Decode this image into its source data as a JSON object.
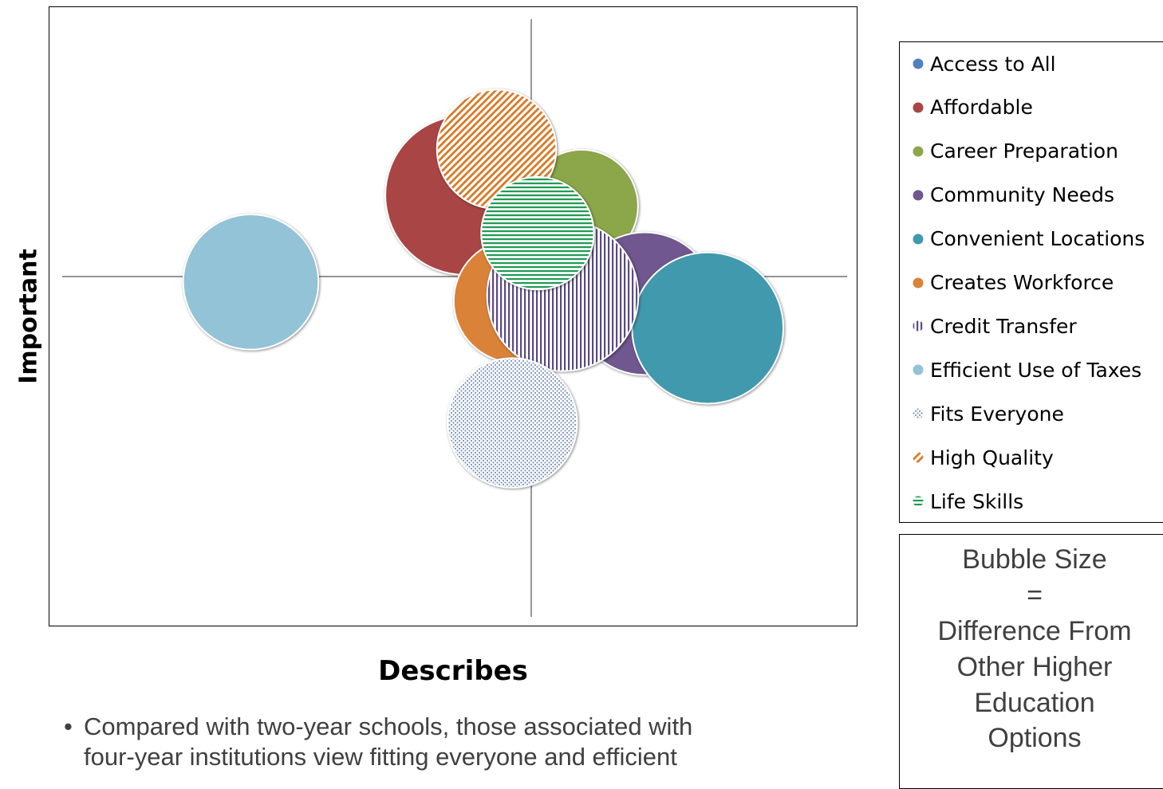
{
  "chart_data": {
    "type": "bubble",
    "title": "",
    "xlabel": "Describes",
    "ylabel": "Important",
    "xlim": [
      -1,
      1
    ],
    "ylim": [
      -1,
      1
    ],
    "axis_lines_at": [
      0,
      0
    ],
    "legend_position": "right",
    "series": [
      {
        "name": "Access to All",
        "color": "#4F81BD",
        "pattern": "solid",
        "points": []
      },
      {
        "name": "Affordable",
        "color": "#A94545",
        "pattern": "solid",
        "points": [
          {
            "x": -0.21,
            "y": 0.3,
            "size": 100
          }
        ]
      },
      {
        "name": "Career Preparation",
        "color": "#8BA74A",
        "pattern": "solid",
        "points": [
          {
            "x": 0.16,
            "y": 0.26,
            "size": 50
          }
        ]
      },
      {
        "name": "Community Needs",
        "color": "#70578F",
        "pattern": "solid",
        "points": [
          {
            "x": 0.36,
            "y": -0.1,
            "size": 80
          }
        ]
      },
      {
        "name": "Convenient Locations",
        "color": "#4199AE",
        "pattern": "solid",
        "points": [
          {
            "x": 0.56,
            "y": -0.19,
            "size": 90
          }
        ]
      },
      {
        "name": "Creates Workforce",
        "color": "#DA8238",
        "pattern": "solid",
        "points": [
          {
            "x": -0.05,
            "y": -0.09,
            "size": 60
          }
        ]
      },
      {
        "name": "Credit Transfer",
        "color": "#5A4A86",
        "pattern": "vertical-lines",
        "points": [
          {
            "x": 0.1,
            "y": -0.07,
            "size": 90
          }
        ]
      },
      {
        "name": "Efficient Use of Taxes",
        "color": "#93C3D6",
        "pattern": "solid",
        "points": [
          {
            "x": -0.89,
            "y": -0.02,
            "size": 72
          }
        ]
      },
      {
        "name": "Fits Everyone",
        "color": "#7E95B3",
        "pattern": "dots",
        "points": [
          {
            "x": -0.06,
            "y": -0.54,
            "size": 66
          }
        ]
      },
      {
        "name": "High Quality",
        "color": "#D77A26",
        "pattern": "diagonal-lines",
        "points": [
          {
            "x": -0.11,
            "y": 0.47,
            "size": 56
          }
        ]
      },
      {
        "name": "Life Skills",
        "color": "#1F9A53",
        "pattern": "horizontal-lines",
        "points": [
          {
            "x": 0.02,
            "y": 0.16,
            "size": 50
          }
        ]
      }
    ]
  },
  "size_note": {
    "lines": [
      "Bubble Size",
      "=",
      "Difference From",
      "Other Higher",
      "Education",
      "Options"
    ]
  },
  "footnote": {
    "bullet": "•",
    "lines": [
      "Compared with two-year schools, those associated with",
      "four-year institutions view fitting everyone and efficient"
    ]
  }
}
